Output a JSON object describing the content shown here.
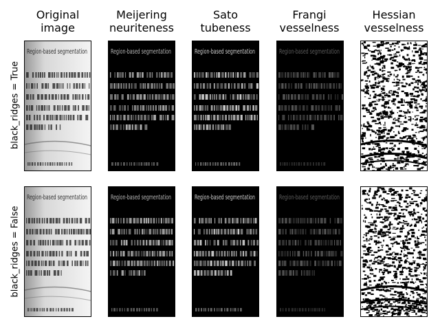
{
  "columns": [
    {
      "title": "Original\nimage"
    },
    {
      "title": "Meijering\nneuriteness"
    },
    {
      "title": "Sato\ntubeness"
    },
    {
      "title": "Frangi\nvesselness"
    },
    {
      "title": "Hessian\nvesselness"
    }
  ],
  "rows": [
    {
      "label": "black_ridges = True"
    },
    {
      "label": "black_ridges = False"
    }
  ],
  "panels": {
    "r0": [
      {
        "filter": "original",
        "heading": "Region-based segmentation"
      },
      {
        "filter": "meijering",
        "heading": "Region-based segmentation"
      },
      {
        "filter": "sato",
        "heading": "Region-based segmentation"
      },
      {
        "filter": "frangi",
        "heading": "Region-based segmentation"
      },
      {
        "filter": "hessian",
        "heading": ""
      }
    ],
    "r1": [
      {
        "filter": "original",
        "heading": "Region-based segmentation"
      },
      {
        "filter": "meijering",
        "heading": "Region-based segmentation"
      },
      {
        "filter": "sato",
        "heading": "Region-based segmentation"
      },
      {
        "filter": "frangi",
        "heading": "Region-based segmentation"
      },
      {
        "filter": "hessian",
        "heading": ""
      }
    ]
  },
  "colors": {
    "background": "#ffffff",
    "border": "#000000"
  }
}
